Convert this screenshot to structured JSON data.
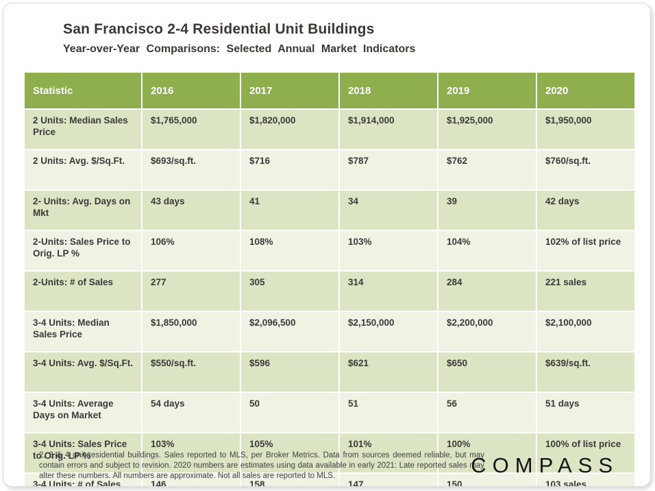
{
  "title": "San Francisco 2-4 Residential Unit Buildings",
  "subtitle": "Year-over-Year Comparisons: Selected Annual Market Indicators",
  "colors": {
    "header_bg": "#8fae4d",
    "row_dark": "#dce5c3",
    "row_light": "#f0f3e4",
    "title_text": "#3d3833",
    "cell_text": "#3a3a3a"
  },
  "chart_data": {
    "type": "table",
    "title": "San Francisco 2-4 Residential Unit Buildings",
    "subtitle": "Year-over-Year Comparisons: Selected Annual Market Indicators",
    "columns": [
      "Statistic",
      "2016",
      "2017",
      "2018",
      "2019",
      "2020"
    ],
    "rows": [
      {
        "label": "2 Units: Median Sales Price",
        "values": [
          "$1,765,000",
          "$1,820,000",
          "$1,914,000",
          "$1,925,000",
          "$1,950,000"
        ]
      },
      {
        "label": "2 Units: Avg. $/Sq.Ft.",
        "values": [
          "$693/sq.ft.",
          "$716",
          "$787",
          "$762",
          "$760/sq.ft."
        ]
      },
      {
        "label": "2- Units: Avg. Days on Mkt",
        "values": [
          "43 days",
          "41",
          "34",
          "39",
          "42 days"
        ]
      },
      {
        "label": "2-Units: Sales Price to Orig. LP %",
        "values": [
          "106%",
          "108%",
          "103%",
          "104%",
          "102% of list price"
        ]
      },
      {
        "label": "2-Units: # of Sales",
        "values": [
          "277",
          "305",
          "314",
          "284",
          "221 sales"
        ]
      },
      {
        "label": "3-4 Units: Median Sales Price",
        "values": [
          "$1,850,000",
          "$2,096,500",
          "$2,150,000",
          "$2,200,000",
          "$2,100,000"
        ]
      },
      {
        "label": "3-4 Units: Avg. $/Sq.Ft.",
        "values": [
          "$550/sq.ft.",
          "$596",
          "$621",
          "$650",
          "$639/sq.ft."
        ]
      },
      {
        "label": "3-4 Units: Average Days on Market",
        "values": [
          "54 days",
          "50",
          "51",
          "56",
          "51 days"
        ]
      },
      {
        "label": "3-4 Units: Sales Price to Orig. LP %",
        "values": [
          "103%",
          "105%",
          "101%",
          "100%",
          "100% of list price"
        ]
      },
      {
        "label": "3-4 Units: # of Sales",
        "values": [
          "146",
          "158",
          "147",
          "150",
          "103 sales"
        ]
      }
    ]
  },
  "footnote": "2, 3 & 4 unit residential buildings. Sales reported to MLS, per Broker Metrics. Data from sources deemed reliable, but may contain errors and subject to revision. 2020 numbers are estimates using data available in early 2021: Late reported sales may alter these numbers. All numbers are approximate. Not all sales are reported to MLS.",
  "logo_text": "COMPASS"
}
